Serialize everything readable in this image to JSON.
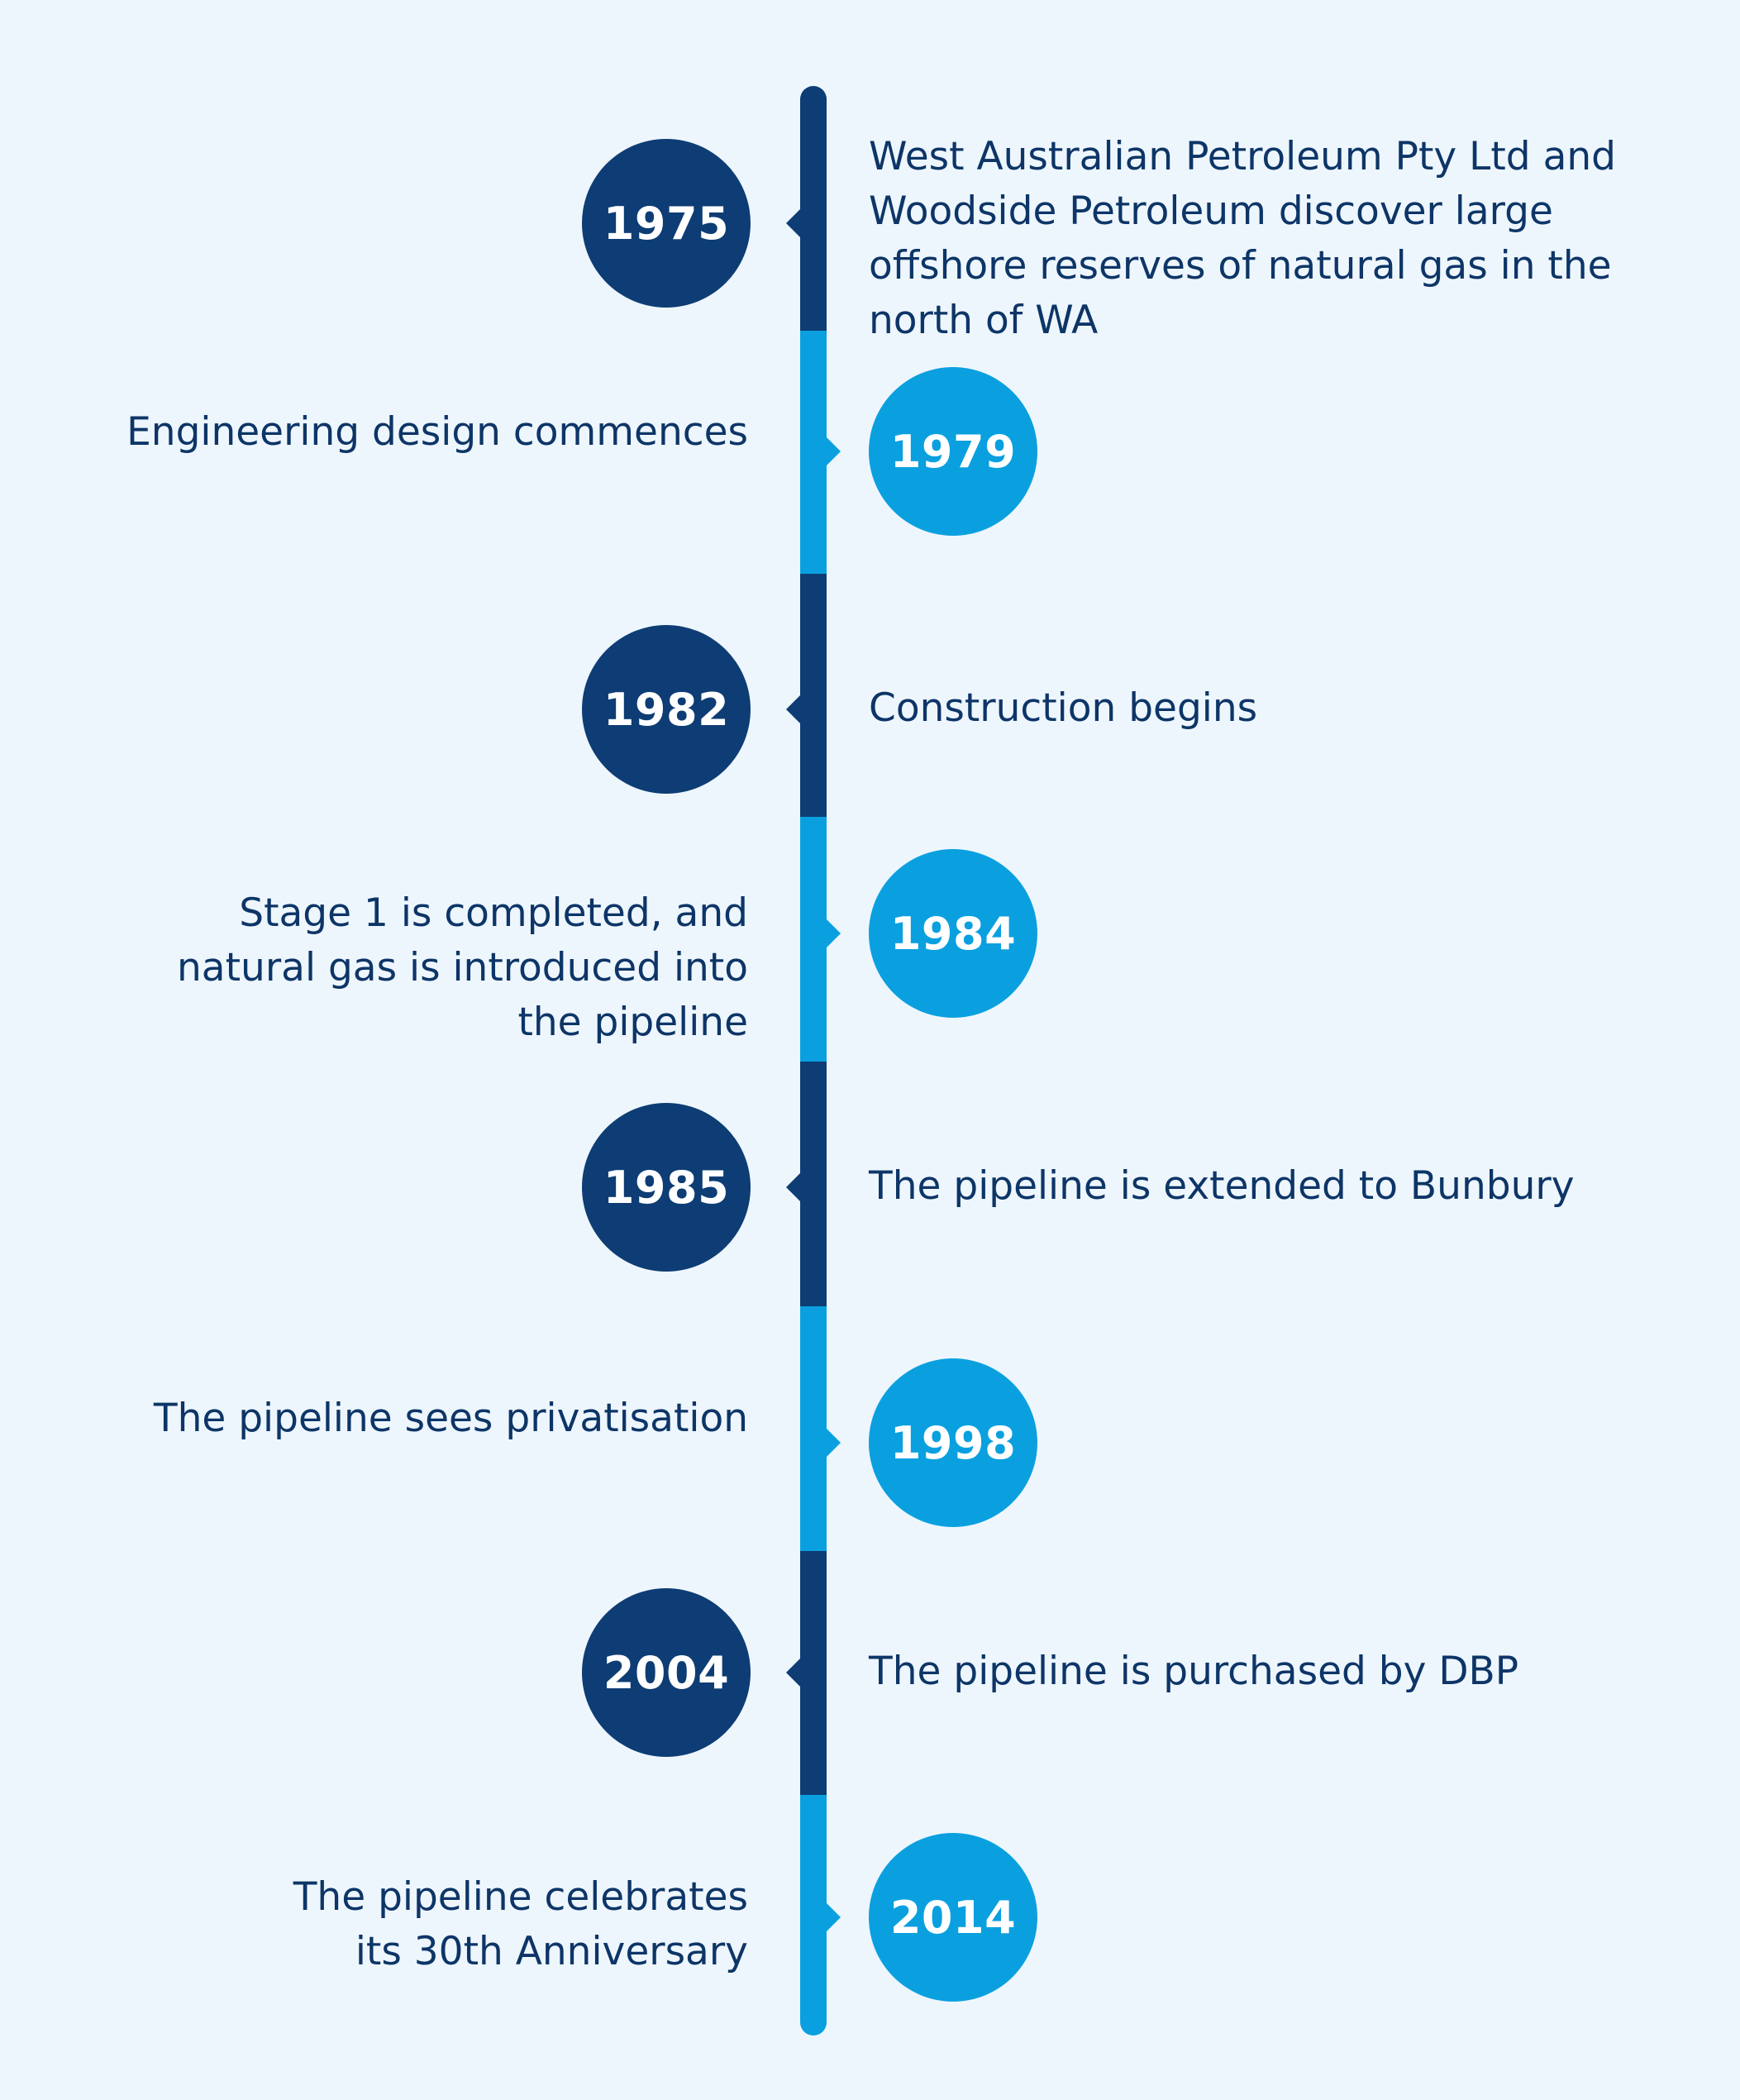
{
  "colors": {
    "background": "#eef6fd",
    "dark": "#0d3d74",
    "light": "#0aa0e0",
    "text": "#0d3567"
  },
  "events": [
    {
      "year": "1975",
      "tone": "dark",
      "side": "left",
      "description": "West Australian Petroleum Pty Ltd and Woodside Petroleum discover large offshore reserves of natural gas in the north of WA"
    },
    {
      "year": "1979",
      "tone": "light",
      "side": "right",
      "description": "Engineering design commences"
    },
    {
      "year": "1982",
      "tone": "dark",
      "side": "left",
      "description": "Construction begins"
    },
    {
      "year": "1984",
      "tone": "light",
      "side": "right",
      "description": "Stage 1 is completed, and natural gas is introduced into the pipeline"
    },
    {
      "year": "1985",
      "tone": "dark",
      "side": "left",
      "description": "The pipeline is extended to Bunbury"
    },
    {
      "year": "1998",
      "tone": "light",
      "side": "right",
      "description": "The pipeline sees privatisation"
    },
    {
      "year": "2004",
      "tone": "dark",
      "side": "left",
      "description": "The pipeline is purchased by DBP"
    },
    {
      "year": "2014",
      "tone": "light",
      "side": "right",
      "description": "The pipeline celebrates its 30th Anniversary"
    }
  ]
}
